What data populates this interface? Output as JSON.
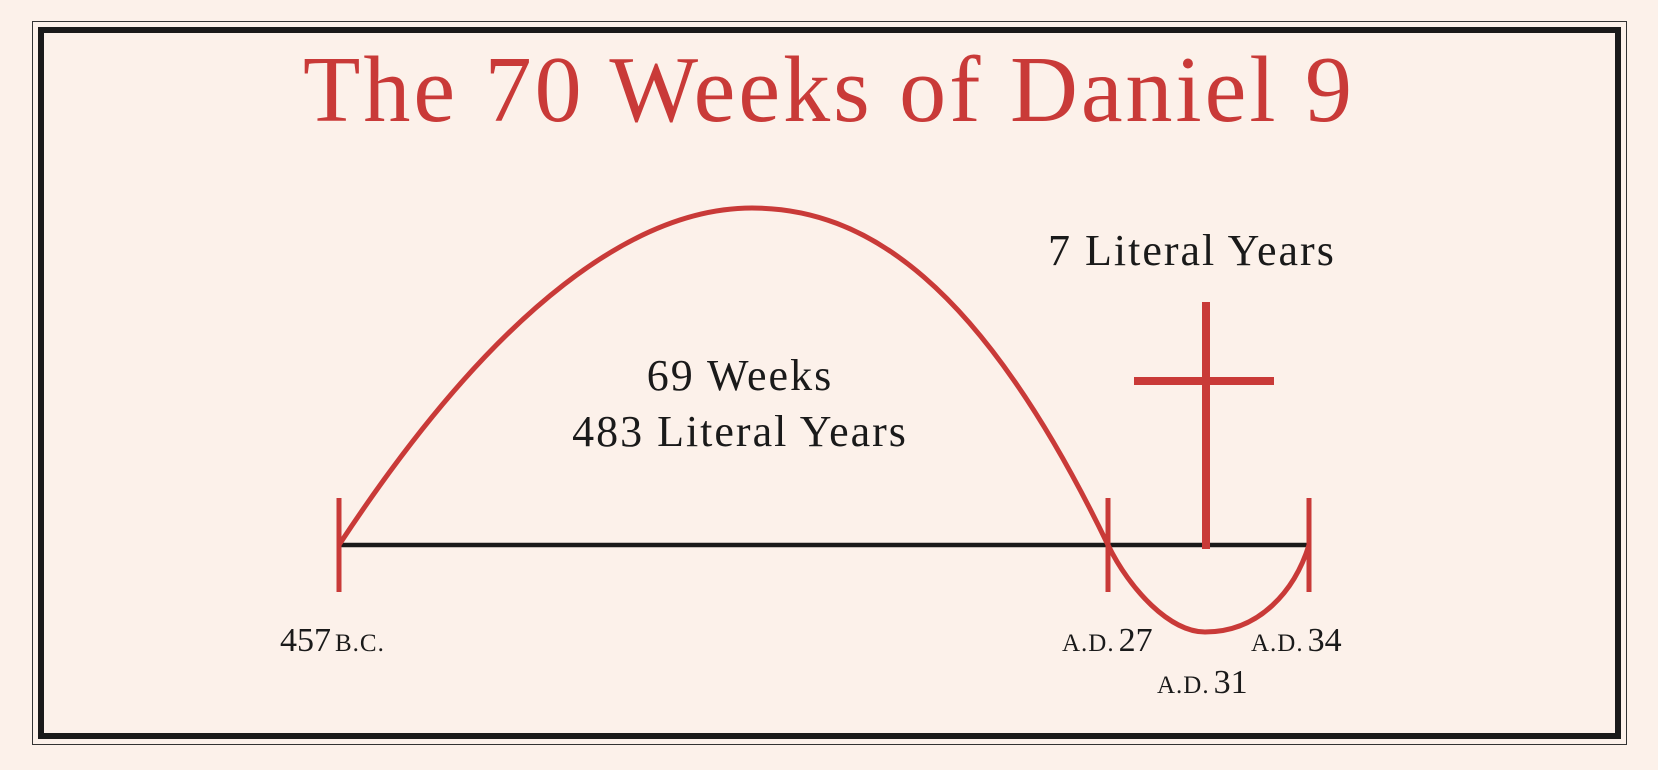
{
  "title": "The 70 Weeks of Daniel 9",
  "colors": {
    "accent": "#c93a38",
    "ink": "#1a1a1a",
    "background": "#fcf1ea"
  },
  "labels": {
    "sixty_nine_weeks": "69 Weeks",
    "four_eighty_three_years": "483 Literal Years",
    "seven_years": "7 Literal Years"
  },
  "dates": {
    "start": {
      "number": "457",
      "era": "B.C."
    },
    "ad27": {
      "era": "A.D.",
      "number": "27"
    },
    "ad31": {
      "era": "A.D.",
      "number": "31"
    },
    "ad34": {
      "era": "A.D.",
      "number": "34"
    }
  },
  "icons": {
    "cross": "cross-icon"
  }
}
